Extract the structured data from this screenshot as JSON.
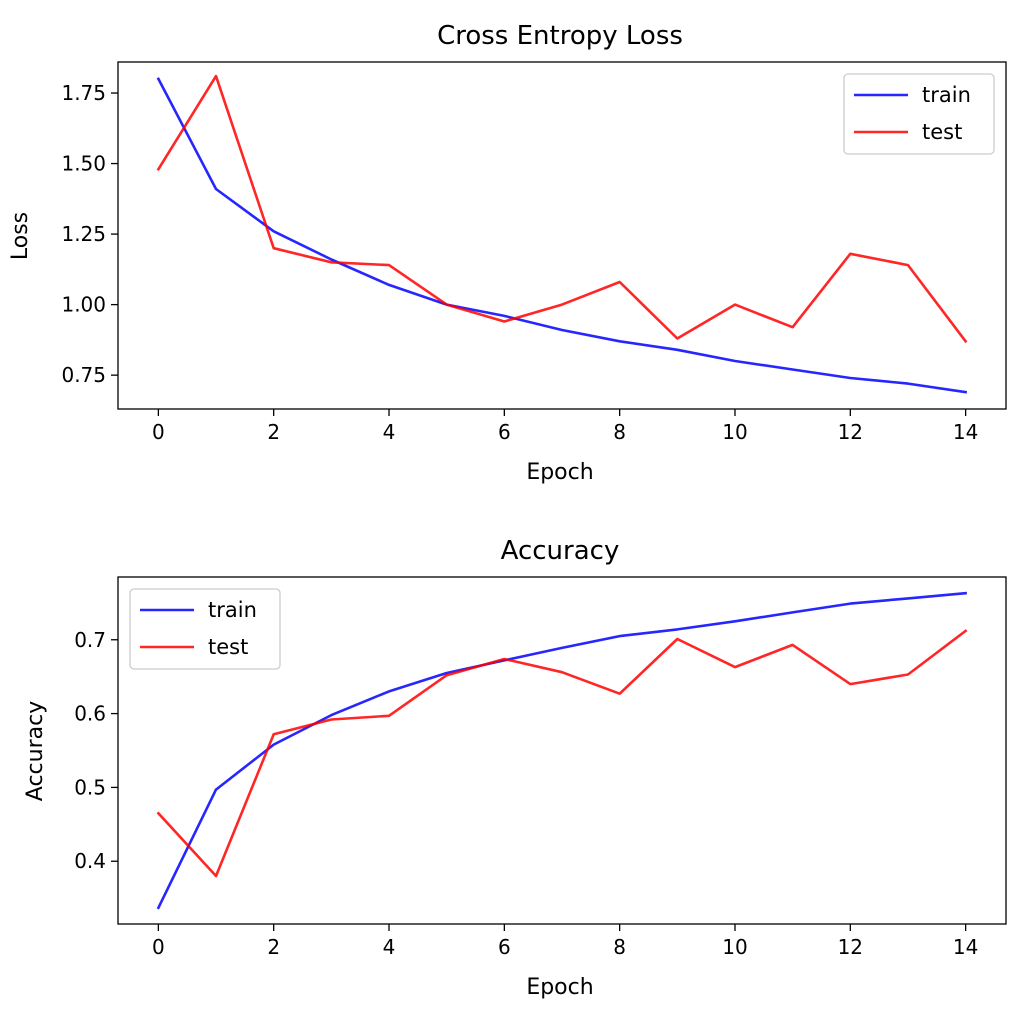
{
  "chart_data": [
    {
      "type": "line",
      "title": "Cross Entropy Loss",
      "xlabel": "Epoch",
      "ylabel": "Loss",
      "xlim": [
        -0.7,
        14.7
      ],
      "ylim": [
        0.63,
        1.86
      ],
      "xticks": [
        0,
        2,
        4,
        6,
        8,
        10,
        12,
        14
      ],
      "xtick_labels": [
        "0",
        "2",
        "4",
        "6",
        "8",
        "10",
        "12",
        "14"
      ],
      "yticks": [
        0.75,
        1.0,
        1.25,
        1.5,
        1.75
      ],
      "ytick_labels": [
        "0.75",
        "1.00",
        "1.25",
        "1.50",
        "1.75"
      ],
      "x": [
        0,
        1,
        2,
        3,
        4,
        5,
        6,
        7,
        8,
        9,
        10,
        11,
        12,
        13,
        14
      ],
      "series": [
        {
          "name": "train",
          "color": "#0000ff",
          "values": [
            1.8,
            1.41,
            1.26,
            1.16,
            1.07,
            1.0,
            0.96,
            0.91,
            0.87,
            0.84,
            0.8,
            0.77,
            0.74,
            0.72,
            0.69
          ]
        },
        {
          "name": "test",
          "color": "#ff0000",
          "values": [
            1.48,
            1.81,
            1.2,
            1.15,
            1.14,
            1.0,
            0.94,
            1.0,
            1.08,
            0.88,
            1.0,
            0.92,
            1.18,
            1.14,
            0.87
          ]
        }
      ],
      "legend_loc": "top-right",
      "grid": false
    },
    {
      "type": "line",
      "title": "Accuracy",
      "xlabel": "Epoch",
      "ylabel": "Accuracy",
      "xlim": [
        -0.7,
        14.7
      ],
      "ylim": [
        0.315,
        0.785
      ],
      "xticks": [
        0,
        2,
        4,
        6,
        8,
        10,
        12,
        14
      ],
      "xtick_labels": [
        "0",
        "2",
        "4",
        "6",
        "8",
        "10",
        "12",
        "14"
      ],
      "yticks": [
        0.4,
        0.5,
        0.6,
        0.7
      ],
      "ytick_labels": [
        "0.4",
        "0.5",
        "0.6",
        "0.7"
      ],
      "x": [
        0,
        1,
        2,
        3,
        4,
        5,
        6,
        7,
        8,
        9,
        10,
        11,
        12,
        13,
        14
      ],
      "series": [
        {
          "name": "train",
          "color": "#0000ff",
          "values": [
            0.337,
            0.497,
            0.558,
            0.598,
            0.63,
            0.655,
            0.672,
            0.689,
            0.705,
            0.714,
            0.725,
            0.737,
            0.749,
            0.756,
            0.763
          ]
        },
        {
          "name": "test",
          "color": "#ff0000",
          "values": [
            0.465,
            0.38,
            0.572,
            0.592,
            0.597,
            0.652,
            0.674,
            0.656,
            0.627,
            0.701,
            0.663,
            0.693,
            0.64,
            0.653,
            0.712
          ]
        }
      ],
      "legend_loc": "top-left",
      "grid": false
    }
  ]
}
